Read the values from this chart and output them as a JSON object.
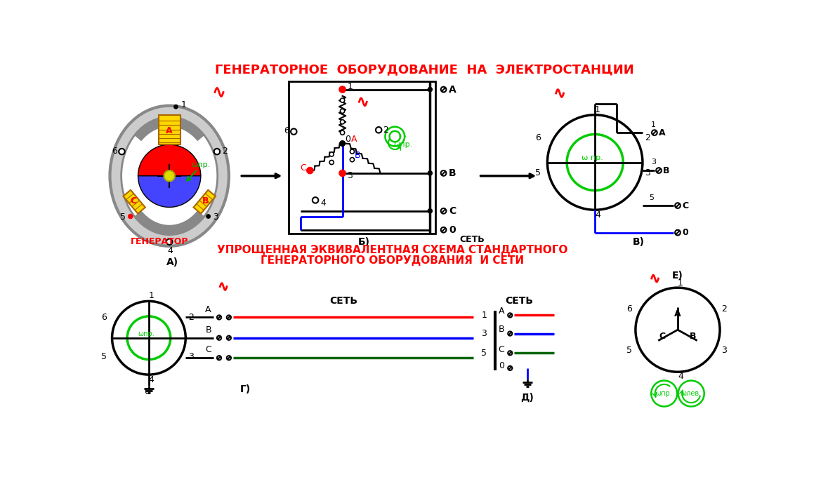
{
  "title_top": "ГЕНЕРАТОРНОЕ  ОБОРУДОВАНИЕ  НА  ЭЛЕКТРОСТАНЦИИ",
  "title_bottom1": "УПРОЩЕННАЯ ЭКВИВАЛЕНТНАЯ СХЕМА СТАНДАРТНОГО",
  "title_bottom2": "ГЕНЕРАТОРНОГО ОБОРУДОВАНИЯ  И СЕТИ",
  "title_color": "#FF0000",
  "bg_color": "#FFFFFF"
}
